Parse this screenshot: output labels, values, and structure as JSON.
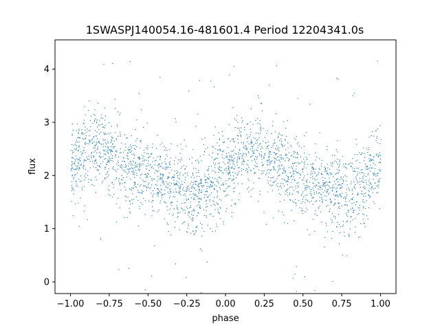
{
  "chart_data": {
    "type": "scatter",
    "title": "1SWASPJ140054.16-481601.4 Period 12204341.0s",
    "xlabel": "phase",
    "ylabel": "flux",
    "xlim": [
      -1.1,
      1.1
    ],
    "ylim": [
      -0.22,
      4.55
    ],
    "x_ticks": [
      -1.0,
      -0.75,
      -0.5,
      -0.25,
      0.0,
      0.25,
      0.5,
      0.75,
      1.0
    ],
    "x_tick_labels": [
      "−1.00",
      "−0.75",
      "−0.50",
      "−0.25",
      "0.00",
      "0.25",
      "0.50",
      "0.75",
      "1.00"
    ],
    "y_ticks": [
      0,
      1,
      2,
      3,
      4
    ],
    "y_tick_labels": [
      "0",
      "1",
      "2",
      "3",
      "4"
    ],
    "grid": false,
    "marker_color": "#1f77b4",
    "series": [
      {
        "x": [
          -1.0,
          -0.9,
          -0.8,
          -0.7,
          -0.6,
          -0.5,
          -0.4,
          -0.3,
          -0.2,
          -0.1,
          0.0,
          0.1,
          0.2,
          0.3,
          0.4,
          0.5,
          0.6,
          0.7,
          0.8,
          0.9,
          1.0
        ],
        "y": [
          2.2,
          2.45,
          2.5,
          2.3,
          2.1,
          1.95,
          1.85,
          1.75,
          1.65,
          1.85,
          2.1,
          2.4,
          2.45,
          2.3,
          2.1,
          1.95,
          1.85,
          1.75,
          1.65,
          1.9,
          2.2
        ]
      }
    ]
  }
}
